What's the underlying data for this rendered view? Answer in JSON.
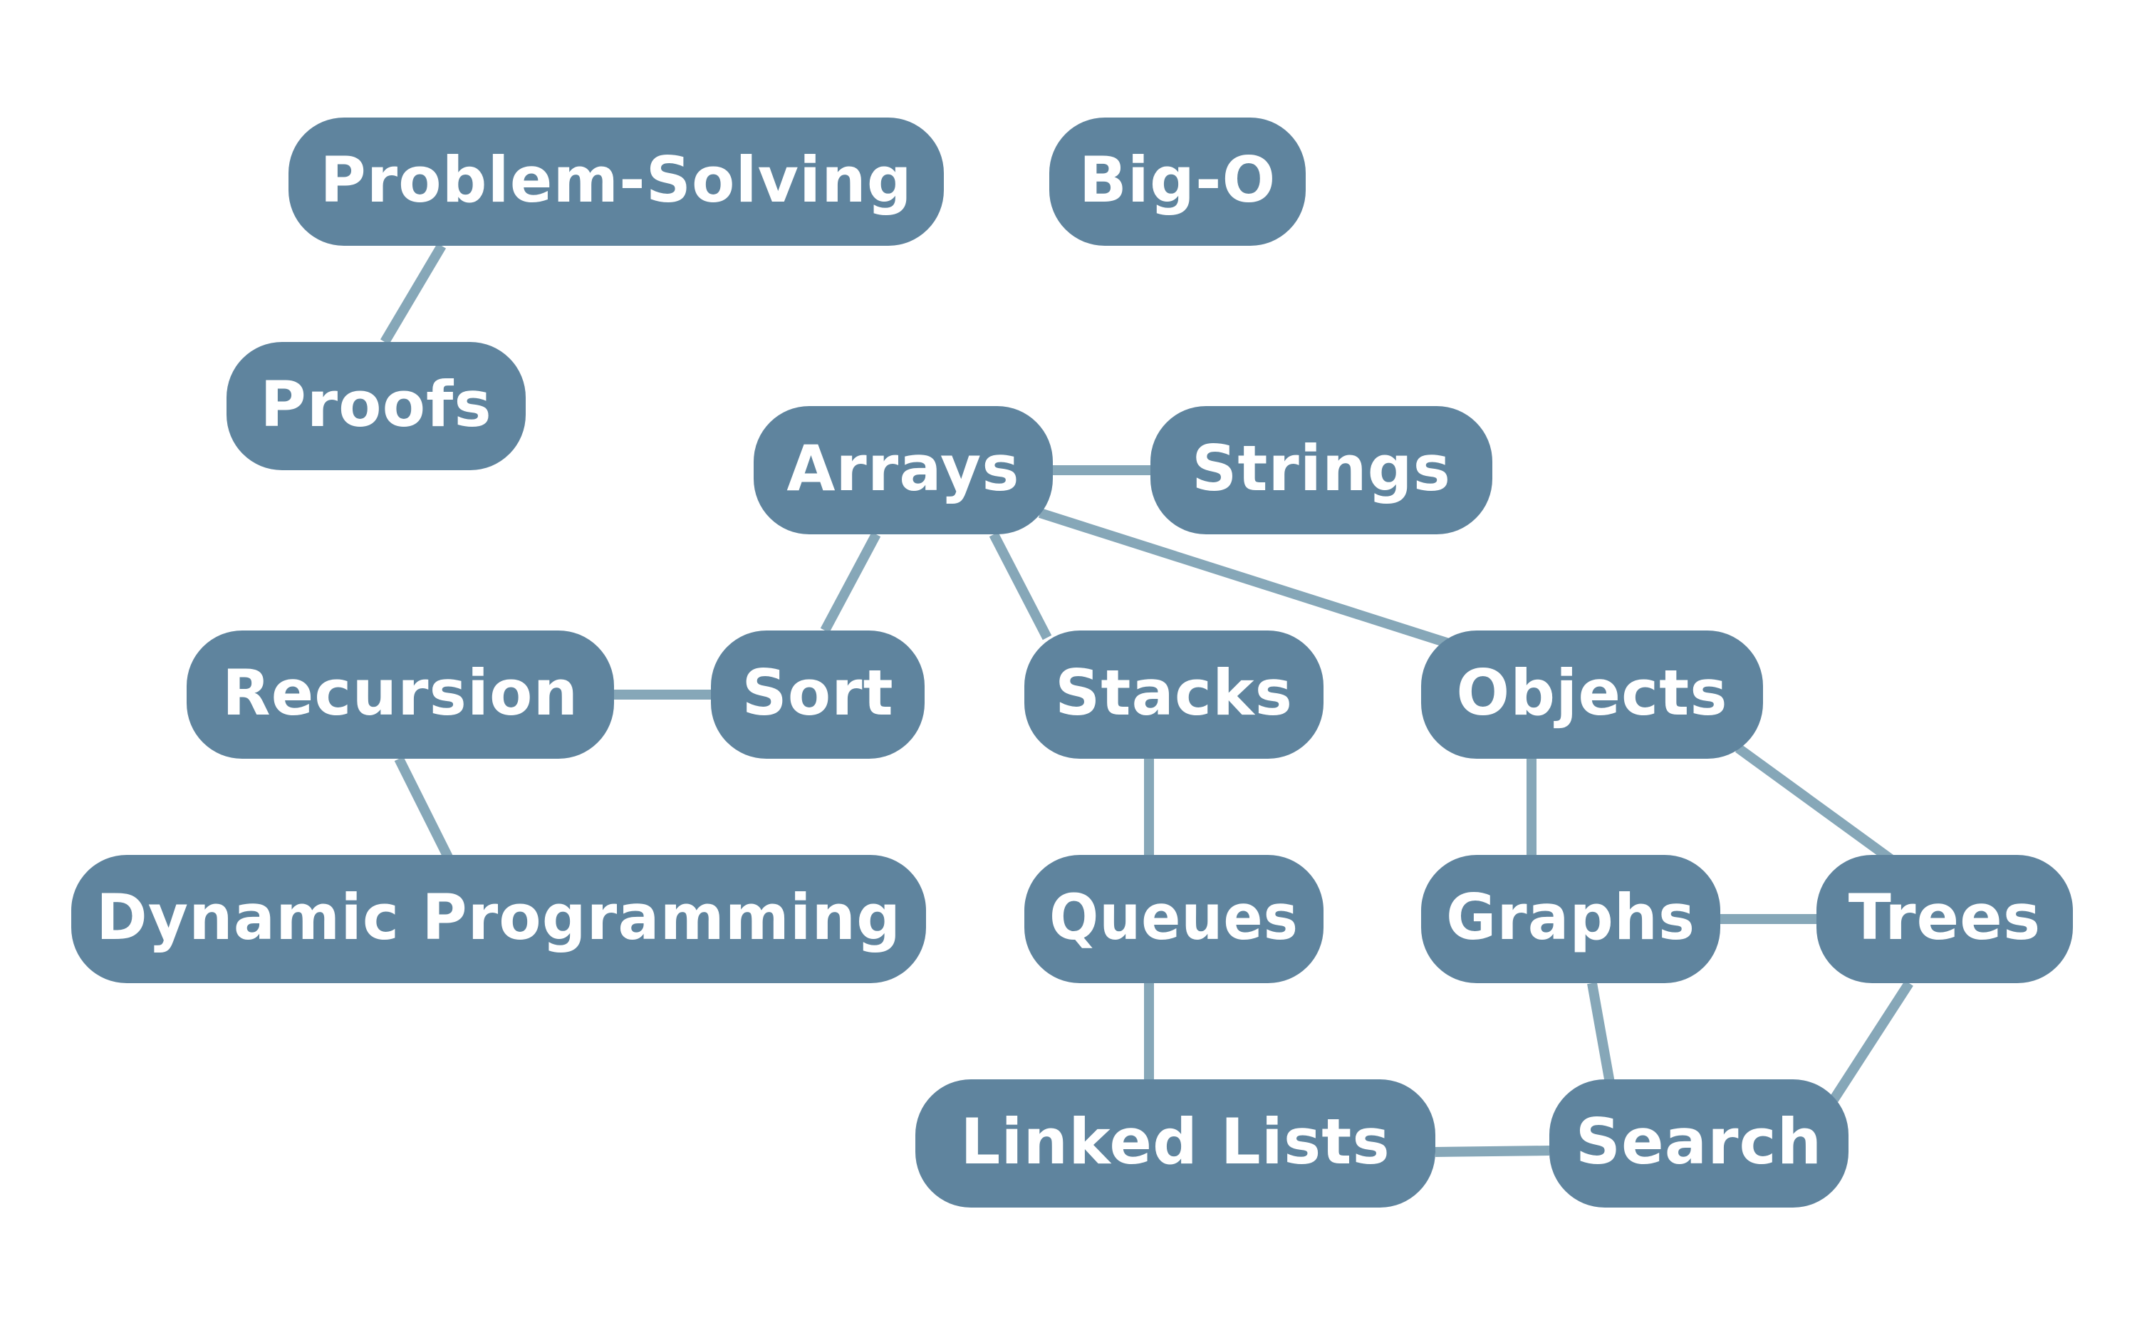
{
  "colors": {
    "node_fill": "#5f849e",
    "edge_stroke": "#86a7b8",
    "label": "#ffffff",
    "background": "#ffffff"
  },
  "nodes": [
    {
      "id": "problem-solving",
      "label": "Problem-Solving"
    },
    {
      "id": "big-o",
      "label": "Big-O"
    },
    {
      "id": "proofs",
      "label": "Proofs"
    },
    {
      "id": "arrays",
      "label": "Arrays"
    },
    {
      "id": "strings",
      "label": "Strings"
    },
    {
      "id": "recursion",
      "label": "Recursion"
    },
    {
      "id": "sort",
      "label": "Sort"
    },
    {
      "id": "stacks",
      "label": "Stacks"
    },
    {
      "id": "objects",
      "label": "Objects"
    },
    {
      "id": "dynamic-programming",
      "label": "Dynamic Programming"
    },
    {
      "id": "queues",
      "label": "Queues"
    },
    {
      "id": "graphs",
      "label": "Graphs"
    },
    {
      "id": "trees",
      "label": "Trees"
    },
    {
      "id": "linked-lists",
      "label": "Linked Lists"
    },
    {
      "id": "search",
      "label": "Search"
    }
  ],
  "edges": [
    {
      "from": "problem-solving",
      "to": "proofs"
    },
    {
      "from": "arrays",
      "to": "strings"
    },
    {
      "from": "arrays",
      "to": "sort"
    },
    {
      "from": "arrays",
      "to": "stacks"
    },
    {
      "from": "arrays",
      "to": "objects"
    },
    {
      "from": "recursion",
      "to": "sort"
    },
    {
      "from": "recursion",
      "to": "dynamic-programming"
    },
    {
      "from": "stacks",
      "to": "queues"
    },
    {
      "from": "queues",
      "to": "linked-lists"
    },
    {
      "from": "objects",
      "to": "graphs"
    },
    {
      "from": "objects",
      "to": "trees"
    },
    {
      "from": "graphs",
      "to": "trees"
    },
    {
      "from": "graphs",
      "to": "search"
    },
    {
      "from": "trees",
      "to": "search"
    },
    {
      "from": "linked-lists",
      "to": "search"
    }
  ]
}
